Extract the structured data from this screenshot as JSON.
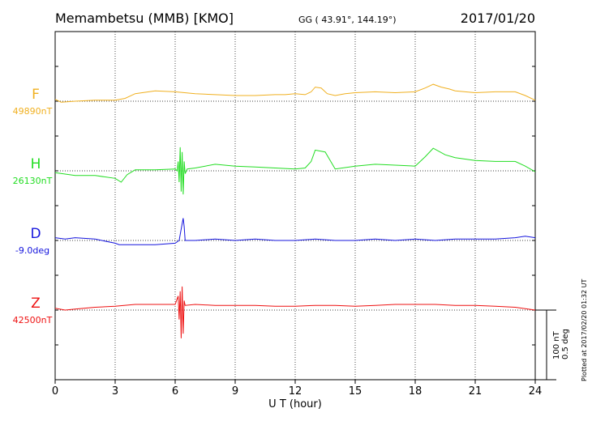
{
  "header": {
    "station": "Memambetsu (MMB)  [KMO]",
    "coords": "GG ( 43.91°, 144.19°)",
    "date": "2017/01/20"
  },
  "footer": {
    "scale_nt": "100 nT",
    "scale_deg": "0.5 deg",
    "plotted": "Plotted at 2017/02/20 01:32 UT"
  },
  "colors": {
    "F": "#f0b020",
    "H": "#22dd22",
    "D": "#1515dd",
    "Z": "#ee1111"
  },
  "chart_data": {
    "type": "line",
    "title": "Memambetsu (MMB)  [KMO]",
    "xlabel": "U T (hour)",
    "xlim": [
      0,
      24
    ],
    "xticks": [
      0,
      3,
      6,
      9,
      12,
      15,
      18,
      21,
      24
    ],
    "grid": true,
    "series": [
      {
        "name": "F",
        "baseline_label": "49890nT",
        "unit": "nT",
        "baseline": 49890,
        "points": [
          [
            0,
            49892
          ],
          [
            0.3,
            49889
          ],
          [
            1,
            49890
          ],
          [
            2,
            49891
          ],
          [
            3,
            49891
          ],
          [
            3.5,
            49893
          ],
          [
            4,
            49898
          ],
          [
            5,
            49901
          ],
          [
            6,
            49900
          ],
          [
            7,
            49898
          ],
          [
            8,
            49897
          ],
          [
            9,
            49896
          ],
          [
            10,
            49896
          ],
          [
            11,
            49897
          ],
          [
            11.5,
            49897
          ],
          [
            12,
            49898
          ],
          [
            12.5,
            49897
          ],
          [
            12.8,
            49900
          ],
          [
            13,
            49905
          ],
          [
            13.3,
            49904
          ],
          [
            13.6,
            49898
          ],
          [
            14,
            49896
          ],
          [
            14.5,
            49898
          ],
          [
            15,
            49899
          ],
          [
            16,
            49900
          ],
          [
            17,
            49899
          ],
          [
            18,
            49900
          ],
          [
            18.5,
            49904
          ],
          [
            18.9,
            49908
          ],
          [
            19.3,
            49905
          ],
          [
            19.7,
            49903
          ],
          [
            20,
            49901
          ],
          [
            21,
            49899
          ],
          [
            22,
            49900
          ],
          [
            23,
            49900
          ],
          [
            23.5,
            49896
          ],
          [
            24,
            49891
          ]
        ]
      },
      {
        "name": "H",
        "baseline_label": "26130nT",
        "unit": "nT",
        "baseline": 26130,
        "points": [
          [
            0,
            26128
          ],
          [
            1,
            26125
          ],
          [
            2,
            26125
          ],
          [
            3,
            26122
          ],
          [
            3.3,
            26118
          ],
          [
            3.6,
            26126
          ],
          [
            4,
            26131
          ],
          [
            5,
            26131
          ],
          [
            6,
            26132
          ],
          [
            6.1,
            26130
          ],
          [
            6.15,
            26140
          ],
          [
            6.2,
            26118
          ],
          [
            6.25,
            26155
          ],
          [
            6.3,
            26108
          ],
          [
            6.35,
            26150
          ],
          [
            6.4,
            26105
          ],
          [
            6.45,
            26140
          ],
          [
            6.5,
            26127
          ],
          [
            6.6,
            26132
          ],
          [
            7,
            26133
          ],
          [
            8,
            26137
          ],
          [
            9,
            26135
          ],
          [
            10,
            26134
          ],
          [
            11,
            26133
          ],
          [
            12,
            26132
          ],
          [
            12.5,
            26133
          ],
          [
            12.8,
            26140
          ],
          [
            13,
            26152
          ],
          [
            13.5,
            26150
          ],
          [
            14,
            26132
          ],
          [
            15,
            26135
          ],
          [
            16,
            26137
          ],
          [
            17,
            26136
          ],
          [
            18,
            26135
          ],
          [
            18.5,
            26145
          ],
          [
            18.9,
            26154
          ],
          [
            19.5,
            26147
          ],
          [
            20,
            26144
          ],
          [
            21,
            26141
          ],
          [
            22,
            26140
          ],
          [
            23,
            26140
          ],
          [
            23.5,
            26135
          ],
          [
            24,
            26129
          ]
        ]
      },
      {
        "name": "D",
        "baseline_label": "-9.0deg",
        "unit": "deg",
        "baseline": -9.0,
        "points": [
          [
            0,
            -8.98
          ],
          [
            0.5,
            -8.99
          ],
          [
            1,
            -8.98
          ],
          [
            2,
            -8.99
          ],
          [
            3,
            -9.02
          ],
          [
            3.2,
            -9.03
          ],
          [
            4,
            -9.03
          ],
          [
            5,
            -9.03
          ],
          [
            6,
            -9.02
          ],
          [
            6.2,
            -9.0
          ],
          [
            6.35,
            -8.88
          ],
          [
            6.4,
            -8.84
          ],
          [
            6.45,
            -8.9
          ],
          [
            6.5,
            -9.0
          ],
          [
            7,
            -9.0
          ],
          [
            8,
            -8.99
          ],
          [
            9,
            -9.0
          ],
          [
            10,
            -8.99
          ],
          [
            11,
            -9.0
          ],
          [
            12,
            -9.0
          ],
          [
            13,
            -8.99
          ],
          [
            14,
            -9.0
          ],
          [
            15,
            -9.0
          ],
          [
            16,
            -8.99
          ],
          [
            17,
            -9.0
          ],
          [
            18,
            -8.99
          ],
          [
            19,
            -9.0
          ],
          [
            20,
            -8.99
          ],
          [
            21,
            -8.99
          ],
          [
            22,
            -8.99
          ],
          [
            23,
            -8.98
          ],
          [
            23.5,
            -8.97
          ],
          [
            24,
            -8.98
          ]
        ]
      },
      {
        "name": "Z",
        "baseline_label": "42500nT",
        "unit": "nT",
        "baseline": 42500,
        "points": [
          [
            0,
            42502
          ],
          [
            0.5,
            42500
          ],
          [
            1,
            42501
          ],
          [
            2,
            42503
          ],
          [
            3,
            42504
          ],
          [
            4,
            42506
          ],
          [
            5,
            42506
          ],
          [
            6,
            42506
          ],
          [
            6.15,
            42515
          ],
          [
            6.2,
            42490
          ],
          [
            6.25,
            42520
          ],
          [
            6.3,
            42470
          ],
          [
            6.35,
            42525
          ],
          [
            6.4,
            42475
          ],
          [
            6.45,
            42510
          ],
          [
            6.5,
            42505
          ],
          [
            7,
            42506
          ],
          [
            8,
            42505
          ],
          [
            9,
            42505
          ],
          [
            10,
            42505
          ],
          [
            11,
            42504
          ],
          [
            12,
            42504
          ],
          [
            13,
            42505
          ],
          [
            14,
            42505
          ],
          [
            15,
            42504
          ],
          [
            16,
            42505
          ],
          [
            17,
            42506
          ],
          [
            18,
            42506
          ],
          [
            19,
            42506
          ],
          [
            20,
            42505
          ],
          [
            21,
            42505
          ],
          [
            22,
            42504
          ],
          [
            23,
            42503
          ],
          [
            24,
            42500
          ]
        ]
      }
    ]
  }
}
